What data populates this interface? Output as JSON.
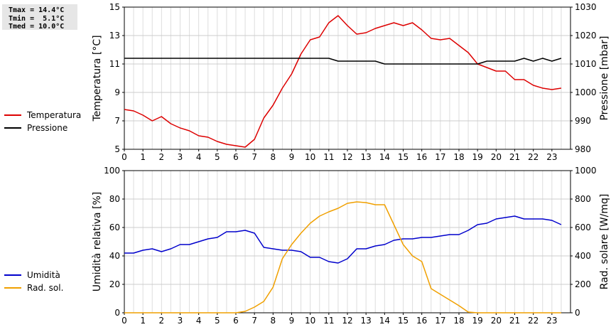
{
  "stats": {
    "tmax": "Tmax = 14.4°C",
    "tmin": "Tmin =  5.1°C",
    "tmed": "Tmed = 10.0°C"
  },
  "chart_data": [
    {
      "type": "line",
      "title": "",
      "xlabel": "",
      "ylabel": "Temperatura [°C]",
      "y2label": "Pressione [mbar]",
      "xlim": [
        0,
        24
      ],
      "ylim": [
        5,
        15
      ],
      "y2lim": [
        980,
        1030
      ],
      "xticks": [
        0,
        1,
        2,
        3,
        4,
        5,
        6,
        7,
        8,
        9,
        10,
        11,
        12,
        13,
        14,
        15,
        16,
        17,
        18,
        19,
        20,
        21,
        22,
        23
      ],
      "yticks": [
        5,
        7,
        9,
        11,
        13,
        15
      ],
      "y2ticks": [
        980,
        990,
        1000,
        1010,
        1020,
        1030
      ],
      "grid": true,
      "legend_position": "left",
      "series": [
        {
          "name": "Temperatura",
          "color": "#dd0000",
          "axis": "left",
          "x": [
            0,
            0.5,
            1,
            1.5,
            2,
            2.5,
            3,
            3.5,
            4,
            4.5,
            5,
            5.5,
            6,
            6.5,
            7,
            7.5,
            8,
            8.5,
            9,
            9.5,
            10,
            10.5,
            11,
            11.5,
            12,
            12.5,
            13,
            13.5,
            14,
            14.5,
            15,
            15.5,
            16,
            16.5,
            17,
            17.5,
            18,
            18.5,
            19,
            19.5,
            20,
            20.5,
            21,
            21.5,
            22,
            22.5,
            23,
            23.5
          ],
          "y": [
            7.8,
            7.7,
            7.4,
            7.0,
            7.3,
            6.8,
            6.5,
            6.3,
            5.95,
            5.85,
            5.55,
            5.35,
            5.25,
            5.15,
            5.7,
            7.2,
            8.1,
            9.3,
            10.3,
            11.7,
            12.7,
            12.9,
            13.9,
            14.4,
            13.7,
            13.1,
            13.2,
            13.5,
            13.7,
            13.9,
            13.7,
            13.9,
            13.4,
            12.8,
            12.7,
            12.8,
            12.3,
            11.8,
            11.0,
            10.75,
            10.5,
            10.5,
            9.9,
            9.9,
            9.5,
            9.3,
            9.2,
            9.3
          ]
        },
        {
          "name": "Pressione",
          "color": "#000000",
          "axis": "right",
          "x": [
            0,
            0.5,
            1,
            1.5,
            2,
            2.5,
            3,
            3.5,
            4,
            4.5,
            5,
            5.5,
            6,
            6.5,
            7,
            7.5,
            8,
            8.5,
            9,
            9.5,
            10,
            10.5,
            11,
            11.5,
            12,
            12.5,
            13,
            13.5,
            14,
            14.5,
            15,
            15.5,
            16,
            16.5,
            17,
            17.5,
            18,
            18.5,
            19,
            19.5,
            20,
            20.5,
            21,
            21.5,
            22,
            22.5,
            23,
            23.5
          ],
          "y": [
            1012,
            1012,
            1012,
            1012,
            1012,
            1012,
            1012,
            1012,
            1012,
            1012,
            1012,
            1012,
            1012,
            1012,
            1012,
            1012,
            1012,
            1012,
            1012,
            1012,
            1012,
            1012,
            1012,
            1011,
            1011,
            1011,
            1011,
            1011,
            1010,
            1010,
            1010,
            1010,
            1010,
            1010,
            1010,
            1010,
            1010,
            1010,
            1010,
            1011,
            1011,
            1011,
            1011,
            1012,
            1011,
            1012,
            1011,
            1012
          ]
        }
      ]
    },
    {
      "type": "line",
      "title": "",
      "xlabel": "",
      "ylabel": "Umidità relativa [%]",
      "y2label": "Rad. solare [W/mq]",
      "xlim": [
        0,
        24
      ],
      "ylim": [
        0,
        100
      ],
      "y2lim": [
        0,
        1000
      ],
      "xticks": [
        0,
        1,
        2,
        3,
        4,
        5,
        6,
        7,
        8,
        9,
        10,
        11,
        12,
        13,
        14,
        15,
        16,
        17,
        18,
        19,
        20,
        21,
        22,
        23
      ],
      "yticks": [
        0,
        20,
        40,
        60,
        80,
        100
      ],
      "y2ticks": [
        0,
        200,
        400,
        600,
        800,
        1000
      ],
      "grid": true,
      "legend_position": "left",
      "series": [
        {
          "name": "Umidità",
          "color": "#0000cc",
          "axis": "left",
          "x": [
            0,
            0.5,
            1,
            1.5,
            2,
            2.5,
            3,
            3.5,
            4,
            4.5,
            5,
            5.5,
            6,
            6.5,
            7,
            7.5,
            8,
            8.5,
            9,
            9.5,
            10,
            10.5,
            11,
            11.5,
            12,
            12.5,
            13,
            13.5,
            14,
            14.5,
            15,
            15.5,
            16,
            16.5,
            17,
            17.5,
            18,
            18.5,
            19,
            19.5,
            20,
            20.5,
            21,
            21.5,
            22,
            22.5,
            23,
            23.5
          ],
          "y": [
            42,
            42,
            44,
            45,
            43,
            45,
            48,
            48,
            50,
            52,
            53,
            57,
            57,
            58,
            56,
            46,
            45,
            44,
            44,
            43,
            39,
            39,
            36,
            35,
            38,
            45,
            45,
            47,
            48,
            51,
            52,
            52,
            53,
            53,
            54,
            55,
            55,
            58,
            62,
            63,
            66,
            67,
            68,
            66,
            66,
            66,
            65,
            62
          ]
        },
        {
          "name": "Rad. sol.",
          "color": "#f0a000",
          "axis": "right",
          "x": [
            0,
            0.5,
            1,
            1.5,
            2,
            2.5,
            3,
            3.5,
            4,
            4.5,
            5,
            5.5,
            6,
            6.5,
            7,
            7.5,
            8,
            8.5,
            9,
            9.5,
            10,
            10.5,
            11,
            11.5,
            12,
            12.5,
            13,
            13.5,
            14,
            14.5,
            15,
            15.5,
            16,
            16.5,
            17,
            17.5,
            18,
            18.5,
            19,
            19.5,
            20,
            20.5,
            21,
            21.5,
            22,
            22.5,
            23,
            23.5
          ],
          "y": [
            0,
            0,
            0,
            0,
            0,
            0,
            0,
            0,
            0,
            0,
            0,
            0,
            0,
            10,
            40,
            80,
            180,
            380,
            480,
            560,
            630,
            680,
            710,
            735,
            770,
            780,
            775,
            760,
            760,
            620,
            480,
            400,
            360,
            170,
            130,
            90,
            50,
            5,
            0,
            0,
            0,
            0,
            0,
            0,
            0,
            0,
            0,
            0
          ]
        }
      ]
    }
  ]
}
